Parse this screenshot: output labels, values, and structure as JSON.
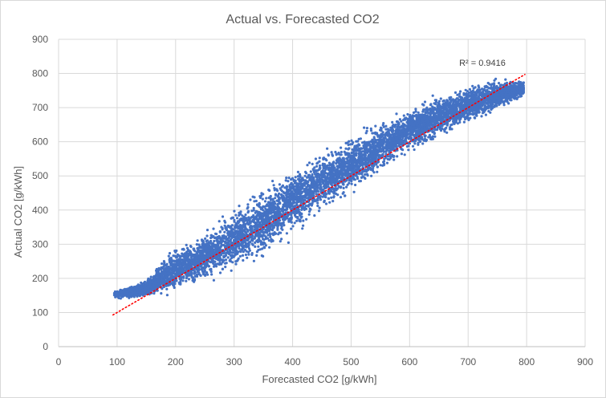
{
  "chart_data": {
    "type": "scatter",
    "title": "Actual vs. Forecasted CO2",
    "xlabel": "Forecasted CO2 [g/kWh]",
    "ylabel": "Actual CO2 [g/kWh]",
    "xlim": [
      0,
      900
    ],
    "ylim": [
      0,
      900
    ],
    "xticks": [
      "0",
      "100",
      "200",
      "300",
      "400",
      "500",
      "600",
      "700",
      "800",
      "900"
    ],
    "yticks": [
      "0",
      "100",
      "200",
      "300",
      "400",
      "500",
      "600",
      "700",
      "800",
      "900"
    ],
    "grid": true,
    "legend": "none",
    "series": [
      {
        "color": "#4472c4",
        "marker": "circle",
        "density_profile": [
          {
            "x": 95,
            "y_low": 140,
            "y_high": 165
          },
          {
            "x": 150,
            "y_low": 140,
            "y_high": 200
          },
          {
            "x": 200,
            "y_low": 150,
            "y_high": 300
          },
          {
            "x": 250,
            "y_low": 175,
            "y_high": 350
          },
          {
            "x": 300,
            "y_low": 205,
            "y_high": 420
          },
          {
            "x": 350,
            "y_low": 240,
            "y_high": 490
          },
          {
            "x": 400,
            "y_low": 310,
            "y_high": 540
          },
          {
            "x": 450,
            "y_low": 380,
            "y_high": 590
          },
          {
            "x": 500,
            "y_low": 430,
            "y_high": 630
          },
          {
            "x": 550,
            "y_low": 500,
            "y_high": 670
          },
          {
            "x": 600,
            "y_low": 560,
            "y_high": 710
          },
          {
            "x": 650,
            "y_low": 600,
            "y_high": 745
          },
          {
            "x": 700,
            "y_low": 640,
            "y_high": 775
          },
          {
            "x": 750,
            "y_low": 680,
            "y_high": 795
          },
          {
            "x": 795,
            "y_low": 730,
            "y_high": 780
          }
        ]
      }
    ],
    "trendline": {
      "style": "dotted",
      "color": "#ff0000",
      "x": [
        93,
        797
      ],
      "y": [
        93,
        797
      ],
      "r_squared_label": "R² = 0.9416"
    }
  }
}
